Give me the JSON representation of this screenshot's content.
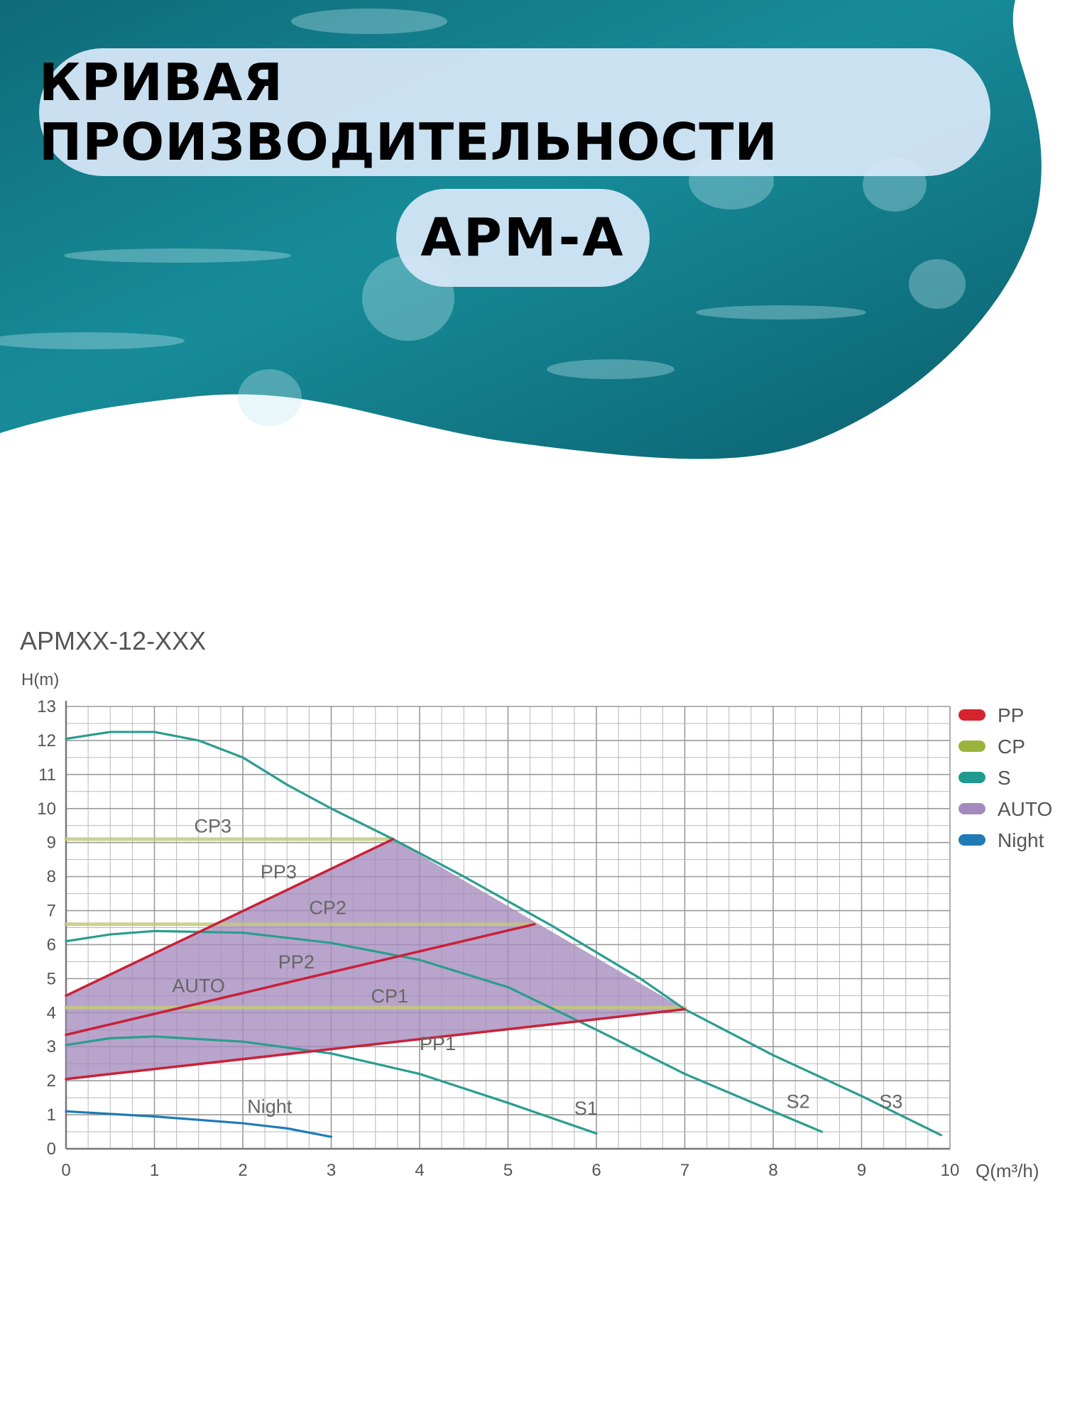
{
  "header": {
    "title": "КРИВАЯ ПРОИЗВОДИТЕЛЬНОСТИ",
    "subtitle": "APM-A"
  },
  "chart_data": {
    "type": "line",
    "title": "APMXX-12-XXX",
    "ylabel": "H(m)",
    "xlabel": "Q(m³/h)",
    "xlim": [
      0,
      10
    ],
    "ylim": [
      0,
      13
    ],
    "xticks": [
      "0",
      "1",
      "2",
      "3",
      "4",
      "5",
      "6",
      "7",
      "8",
      "9",
      "10"
    ],
    "yticks": [
      "0",
      "1",
      "2",
      "3",
      "4",
      "5",
      "6",
      "7",
      "8",
      "9",
      "10",
      "11",
      "12",
      "13"
    ],
    "grid": true,
    "legend_position": "right",
    "legend": [
      {
        "name": "PP",
        "color": "#d6242f"
      },
      {
        "name": "CP",
        "color": "#9ab33a"
      },
      {
        "name": "S",
        "color": "#1e9a8f"
      },
      {
        "name": "AUTO",
        "color": "#a58bbd"
      },
      {
        "name": "Night",
        "color": "#1f7bb6"
      }
    ],
    "auto_region": {
      "label": "AUTO",
      "color": "#a58bbd",
      "points": [
        [
          0,
          4.5
        ],
        [
          3.7,
          9.1
        ],
        [
          7.0,
          4.1
        ],
        [
          0,
          2.05
        ]
      ]
    },
    "series": [
      {
        "name": "S3",
        "color": "#2a9d8f",
        "points": [
          [
            0,
            12.05
          ],
          [
            0.5,
            12.25
          ],
          [
            1.0,
            12.25
          ],
          [
            1.5,
            12.0
          ],
          [
            2.0,
            11.5
          ],
          [
            2.5,
            10.7
          ],
          [
            3.0,
            10.0
          ],
          [
            3.7,
            9.1
          ],
          [
            4.5,
            8.0
          ],
          [
            5.5,
            6.55
          ],
          [
            6.5,
            5.0
          ],
          [
            7.0,
            4.1
          ],
          [
            8.0,
            2.75
          ],
          [
            9.0,
            1.55
          ],
          [
            9.9,
            0.4
          ]
        ]
      },
      {
        "name": "S2",
        "color": "#2a9d8f",
        "points": [
          [
            0,
            6.1
          ],
          [
            0.5,
            6.3
          ],
          [
            1.0,
            6.4
          ],
          [
            2.0,
            6.35
          ],
          [
            3.0,
            6.05
          ],
          [
            4.0,
            5.55
          ],
          [
            5.0,
            4.75
          ],
          [
            6.0,
            3.5
          ],
          [
            7.0,
            2.2
          ],
          [
            8.0,
            1.1
          ],
          [
            8.55,
            0.5
          ]
        ]
      },
      {
        "name": "S1",
        "color": "#2a9d8f",
        "points": [
          [
            0,
            3.05
          ],
          [
            0.5,
            3.25
          ],
          [
            1.0,
            3.3
          ],
          [
            2.0,
            3.15
          ],
          [
            3.0,
            2.8
          ],
          [
            4.0,
            2.2
          ],
          [
            5.0,
            1.35
          ],
          [
            5.5,
            0.9
          ],
          [
            6.0,
            0.45
          ]
        ]
      },
      {
        "name": "Night",
        "color": "#1f7bb6",
        "points": [
          [
            0,
            1.1
          ],
          [
            1.0,
            0.95
          ],
          [
            2.0,
            0.75
          ],
          [
            2.5,
            0.6
          ],
          [
            3.0,
            0.35
          ]
        ]
      },
      {
        "name": "PP1",
        "color": "#c8213a",
        "points": [
          [
            0,
            2.05
          ],
          [
            7.0,
            4.1
          ]
        ]
      },
      {
        "name": "PP2",
        "color": "#c8213a",
        "points": [
          [
            0,
            3.35
          ],
          [
            5.3,
            6.6
          ]
        ]
      },
      {
        "name": "PP3",
        "color": "#c8213a",
        "points": [
          [
            0,
            4.5
          ],
          [
            3.7,
            9.1
          ]
        ]
      },
      {
        "name": "CP1",
        "color": "#c2c97e",
        "points": [
          [
            0,
            4.15
          ],
          [
            7.0,
            4.15
          ]
        ]
      },
      {
        "name": "CP2",
        "color": "#c2c97e",
        "points": [
          [
            0,
            6.6
          ],
          [
            5.3,
            6.6
          ]
        ]
      },
      {
        "name": "CP3",
        "color": "#c2c97e",
        "points": [
          [
            0,
            9.1
          ],
          [
            3.7,
            9.1
          ]
        ]
      }
    ],
    "annotations": [
      {
        "text": "CP3",
        "x": 1.45,
        "y": 9.3
      },
      {
        "text": "PP3",
        "x": 2.2,
        "y": 7.95
      },
      {
        "text": "CP2",
        "x": 2.75,
        "y": 6.9
      },
      {
        "text": "PP2",
        "x": 2.4,
        "y": 5.3
      },
      {
        "text": "AUTO",
        "x": 1.2,
        "y": 4.6
      },
      {
        "text": "CP1",
        "x": 3.45,
        "y": 4.3
      },
      {
        "text": "PP1",
        "x": 4.0,
        "y": 2.9
      },
      {
        "text": "Night",
        "x": 2.05,
        "y": 1.05
      },
      {
        "text": "S1",
        "x": 5.75,
        "y": 1.0
      },
      {
        "text": "S2",
        "x": 8.15,
        "y": 1.2
      },
      {
        "text": "S3",
        "x": 9.2,
        "y": 1.2
      }
    ]
  }
}
